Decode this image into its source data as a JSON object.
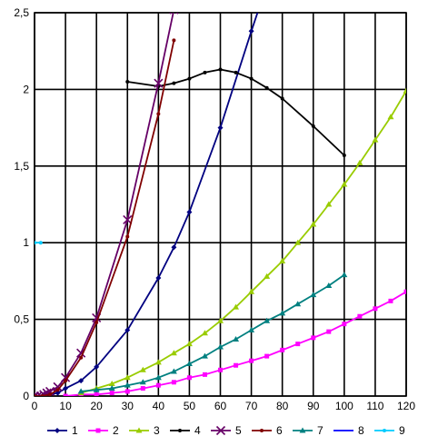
{
  "chart_data": {
    "type": "line",
    "title": "",
    "xlabel": "",
    "ylabel": "",
    "xlim": [
      0,
      120
    ],
    "ylim": [
      0,
      2.5
    ],
    "grid": true,
    "x_ticks": [
      "0",
      "10",
      "20",
      "30",
      "40",
      "50",
      "60",
      "70",
      "80",
      "90",
      "100",
      "110",
      "120"
    ],
    "y_ticks": [
      "0",
      "0,5",
      "1",
      "1,5",
      "2",
      "2,5"
    ],
    "legend_position": "bottom",
    "series": [
      {
        "name": "1",
        "color": "#000080",
        "marker": "diamond",
        "points": [
          [
            0,
            0
          ],
          [
            2.5,
            0
          ],
          [
            5,
            0.01
          ],
          [
            7.5,
            0.02
          ],
          [
            10,
            0.05
          ],
          [
            15,
            0.1
          ],
          [
            20,
            0.19
          ],
          [
            30,
            0.43
          ],
          [
            40,
            0.77
          ],
          [
            45,
            0.97
          ],
          [
            50,
            1.2
          ],
          [
            60,
            1.75
          ],
          [
            70,
            2.38
          ],
          [
            72.5,
            2.53
          ]
        ]
      },
      {
        "name": "2",
        "color": "#ff00ff",
        "marker": "square",
        "points": [
          [
            10,
            0
          ],
          [
            15,
            0.01
          ],
          [
            20,
            0.01
          ],
          [
            25,
            0.02
          ],
          [
            30,
            0.03
          ],
          [
            35,
            0.05
          ],
          [
            40,
            0.07
          ],
          [
            45,
            0.09
          ],
          [
            50,
            0.12
          ],
          [
            55,
            0.14
          ],
          [
            60,
            0.17
          ],
          [
            65,
            0.2
          ],
          [
            70,
            0.23
          ],
          [
            75,
            0.26
          ],
          [
            80,
            0.3
          ],
          [
            85,
            0.34
          ],
          [
            90,
            0.38
          ],
          [
            95,
            0.42
          ],
          [
            100,
            0.47
          ],
          [
            105,
            0.52
          ],
          [
            110,
            0.57
          ],
          [
            115,
            0.62
          ],
          [
            120,
            0.68
          ]
        ]
      },
      {
        "name": "3",
        "color": "#99cc00",
        "marker": "triangle",
        "points": [
          [
            15,
            0.02
          ],
          [
            20,
            0.05
          ],
          [
            25,
            0.08
          ],
          [
            30,
            0.12
          ],
          [
            35,
            0.17
          ],
          [
            40,
            0.22
          ],
          [
            45,
            0.28
          ],
          [
            50,
            0.34
          ],
          [
            55,
            0.41
          ],
          [
            60,
            0.49
          ],
          [
            65,
            0.58
          ],
          [
            70,
            0.68
          ],
          [
            75,
            0.78
          ],
          [
            80,
            0.88
          ],
          [
            85,
            1.0
          ],
          [
            90,
            1.12
          ],
          [
            95,
            1.25
          ],
          [
            100,
            1.38
          ],
          [
            105,
            1.52
          ],
          [
            110,
            1.67
          ],
          [
            115,
            1.82
          ],
          [
            120,
            1.99
          ]
        ]
      },
      {
        "name": "4",
        "color": "#000000",
        "marker": "dot",
        "points": [
          [
            30,
            2.05
          ],
          [
            40,
            2.02
          ],
          [
            45,
            2.04
          ],
          [
            50,
            2.07
          ],
          [
            55,
            2.11
          ],
          [
            60,
            2.13
          ],
          [
            65,
            2.11
          ],
          [
            70,
            2.07
          ],
          [
            75,
            2.01
          ],
          [
            80,
            1.94
          ],
          [
            90,
            1.76
          ],
          [
            100,
            1.57
          ]
        ]
      },
      {
        "name": "5",
        "color": "#660066",
        "marker": "x",
        "points": [
          [
            0,
            0
          ],
          [
            1,
            0
          ],
          [
            2,
            0
          ],
          [
            3,
            0.01
          ],
          [
            4,
            0.02
          ],
          [
            5,
            0.03
          ],
          [
            7.5,
            0.06
          ],
          [
            10,
            0.12
          ],
          [
            15,
            0.28
          ],
          [
            20,
            0.51
          ],
          [
            30,
            1.15
          ],
          [
            40,
            2.04
          ],
          [
            45,
            2.52
          ]
        ]
      },
      {
        "name": "6",
        "color": "#800000",
        "marker": "dot",
        "points": [
          [
            0,
            0
          ],
          [
            2.5,
            0
          ],
          [
            5,
            0.01
          ],
          [
            7.5,
            0.04
          ],
          [
            10,
            0.1
          ],
          [
            15,
            0.25
          ],
          [
            20,
            0.48
          ],
          [
            30,
            1.04
          ],
          [
            40,
            1.84
          ],
          [
            45,
            2.32
          ]
        ]
      },
      {
        "name": "7",
        "color": "#008080",
        "marker": "triangle",
        "points": [
          [
            15,
            0.03
          ],
          [
            20,
            0.04
          ],
          [
            25,
            0.05
          ],
          [
            30,
            0.07
          ],
          [
            35,
            0.09
          ],
          [
            40,
            0.12
          ],
          [
            45,
            0.16
          ],
          [
            50,
            0.21
          ],
          [
            55,
            0.26
          ],
          [
            60,
            0.32
          ],
          [
            65,
            0.37
          ],
          [
            70,
            0.43
          ],
          [
            75,
            0.49
          ],
          [
            80,
            0.54
          ],
          [
            85,
            0.6
          ],
          [
            90,
            0.66
          ],
          [
            95,
            0.72
          ],
          [
            100,
            0.79
          ]
        ]
      },
      {
        "name": "8",
        "color": "#0000ff",
        "marker": "line",
        "points": []
      },
      {
        "name": "9",
        "color": "#00ccff",
        "marker": "dot",
        "points": [
          [
            0,
            1.0
          ],
          [
            2,
            1.0
          ]
        ]
      }
    ]
  }
}
